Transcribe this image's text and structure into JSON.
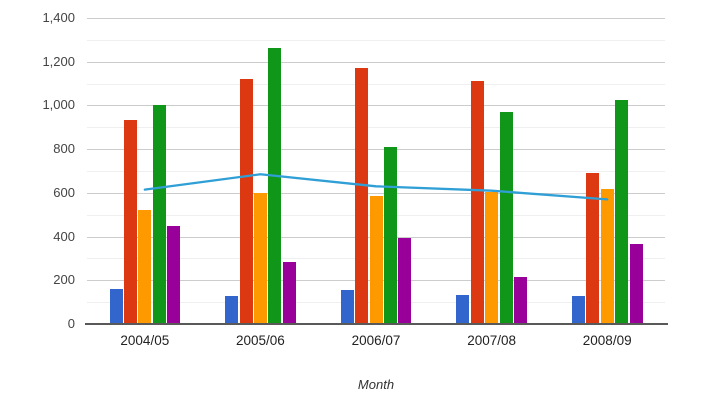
{
  "chart_data": {
    "type": "bar",
    "subtype": "grouped-bars-with-line-overlay",
    "title": "",
    "xlabel": "Month",
    "ylabel": "",
    "categories": [
      "2004/05",
      "2005/06",
      "2006/07",
      "2007/08",
      "2008/09"
    ],
    "series": [
      {
        "name": "blue-bars",
        "type": "bar",
        "color": "#3366cc",
        "values": [
          160,
          130,
          155,
          135,
          130
        ]
      },
      {
        "name": "red-bars",
        "type": "bar",
        "color": "#dc3912",
        "values": [
          935,
          1120,
          1170,
          1110,
          690
        ]
      },
      {
        "name": "orange-bars",
        "type": "bar",
        "color": "#ff9900",
        "values": [
          520,
          600,
          585,
          605,
          620
        ]
      },
      {
        "name": "green-bars",
        "type": "bar",
        "color": "#109618",
        "values": [
          1000,
          1265,
          810,
          970,
          1025
        ]
      },
      {
        "name": "purple-bars",
        "type": "bar",
        "color": "#990099",
        "values": [
          450,
          285,
          395,
          215,
          365
        ]
      },
      {
        "name": "blue-line",
        "type": "line",
        "color": "#2f9fd6",
        "values": [
          615,
          685,
          630,
          610,
          570
        ]
      }
    ],
    "ylim": [
      0,
      1400
    ],
    "yticks": [
      "0",
      "200",
      "400",
      "600",
      "800",
      "1,000",
      "1,200",
      "1,400"
    ],
    "ytick_step": 200,
    "grid": {
      "minor_step": 100,
      "major_step": 200,
      "major_color": "#cccccc",
      "minor_color": "#efefef",
      "baseline_color": "#595959"
    },
    "legend": "none",
    "background_color": "#ffffff"
  }
}
